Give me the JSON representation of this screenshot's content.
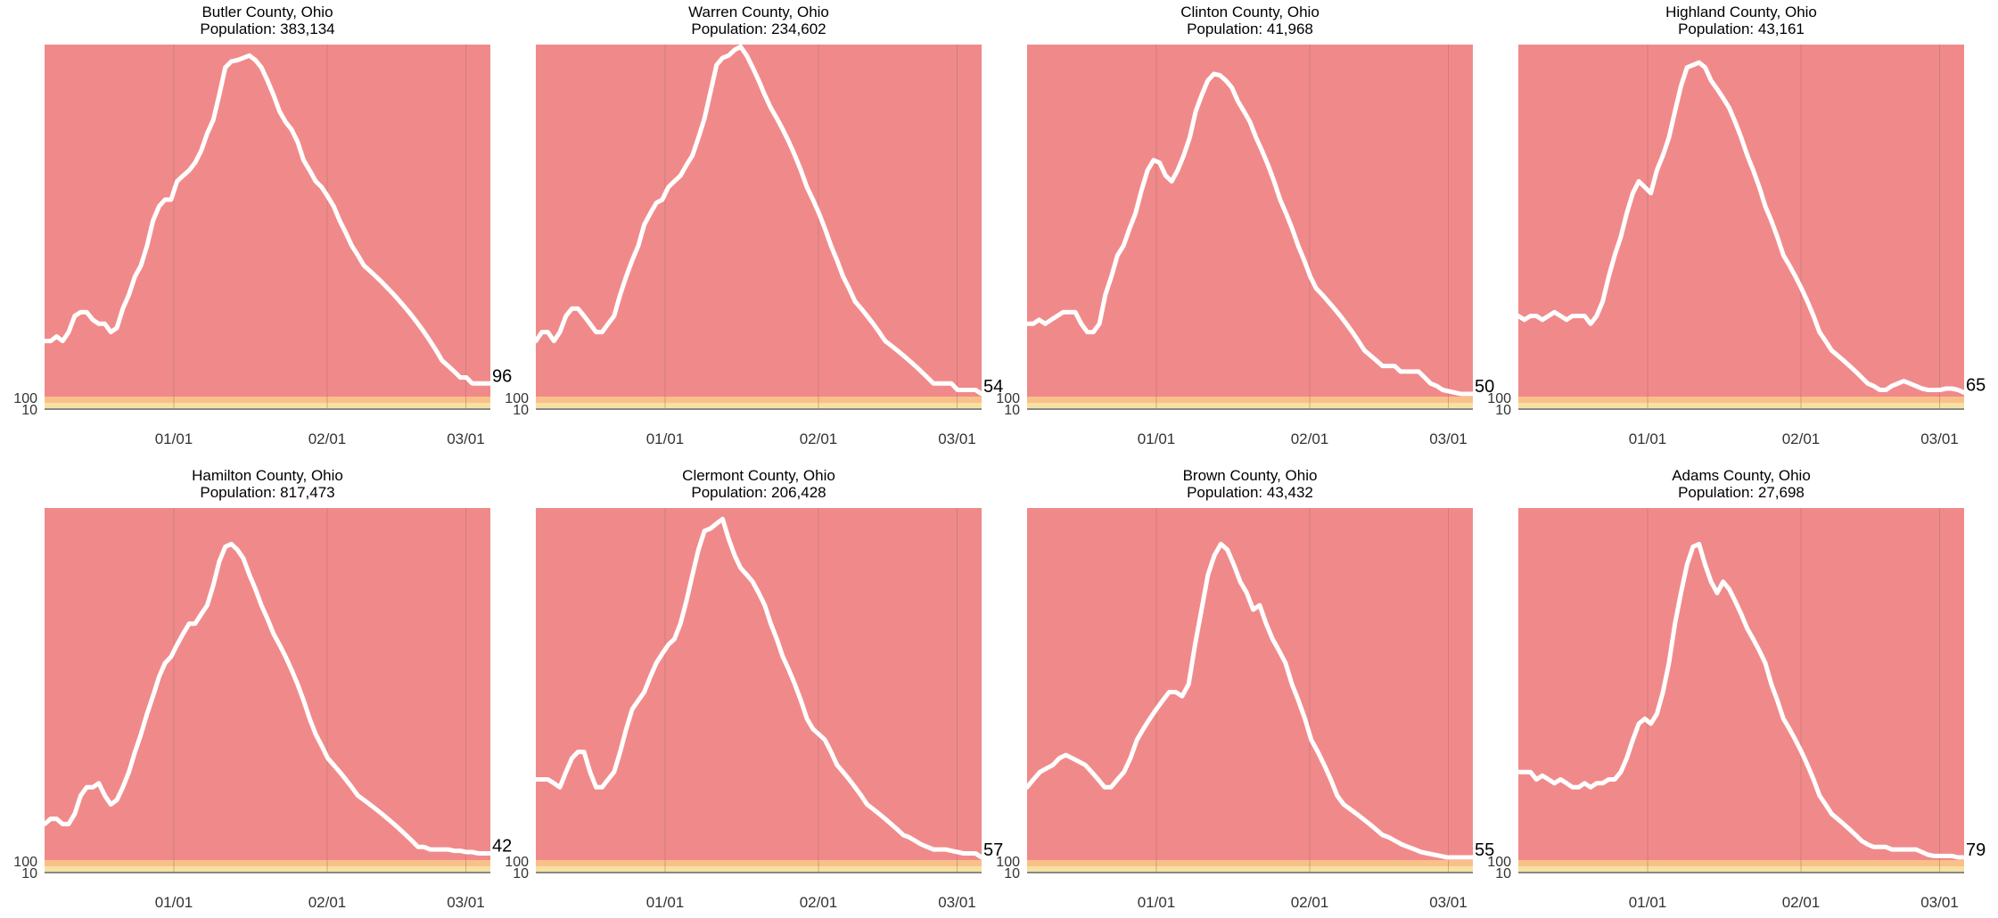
{
  "chart_data": [
    {
      "type": "line",
      "county": "Butler County, Ohio",
      "population": "Population: 383,134",
      "end_label": "96",
      "x_ticks": [
        "01/01",
        "02/01",
        "03/01"
      ],
      "y_ticks": [
        "100",
        "10"
      ],
      "values": [
        15,
        15,
        15.5,
        15,
        16,
        18,
        18.5,
        18.5,
        17.5,
        17,
        17,
        16,
        16.5,
        19,
        21,
        24,
        26,
        30,
        36,
        40,
        42,
        42,
        48,
        50,
        52,
        55,
        60,
        68,
        75,
        90,
        110,
        115,
        116,
        118,
        120,
        116,
        110,
        100,
        90,
        80,
        74,
        70,
        64,
        56,
        52,
        48,
        46,
        43,
        40,
        36,
        33,
        30,
        28,
        26,
        25,
        24,
        23,
        22,
        21,
        20,
        19,
        18,
        17,
        16,
        15,
        14,
        13,
        12.5,
        12,
        11.5,
        11.5,
        11,
        11,
        11,
        11
      ]
    },
    {
      "type": "line",
      "county": "Warren County, Ohio",
      "population": "Population: 234,602",
      "end_label": "54",
      "x_ticks": [
        "01/01",
        "02/01",
        "03/01"
      ],
      "y_ticks": [
        "100",
        "10"
      ],
      "values": [
        15,
        16,
        16,
        15,
        16,
        18,
        19,
        19,
        18,
        17,
        16,
        16,
        17,
        18,
        21,
        24,
        27,
        30,
        35,
        38,
        41,
        42,
        46,
        48,
        50,
        54,
        58,
        66,
        76,
        92,
        112,
        118,
        120,
        125,
        128,
        120,
        110,
        100,
        90,
        82,
        76,
        70,
        64,
        58,
        52,
        46,
        42,
        38,
        34,
        30,
        27,
        24,
        22,
        20,
        19,
        18,
        17,
        16,
        15,
        14.5,
        14,
        13.5,
        13,
        12.5,
        12,
        11.5,
        11,
        11,
        11,
        11,
        10.5,
        10.5,
        10.5,
        10.5,
        10.2
      ]
    },
    {
      "type": "line",
      "county": "Clinton County, Ohio",
      "population": "Population: 41,968",
      "end_label": "50",
      "x_ticks": [
        "01/01",
        "02/01",
        "03/01"
      ],
      "y_ticks": [
        "100",
        "10"
      ],
      "values": [
        17,
        17,
        17.5,
        17,
        17.5,
        18,
        18.5,
        18.5,
        18.5,
        17,
        16,
        16,
        17,
        21,
        24,
        28,
        30,
        34,
        38,
        45,
        52,
        56,
        55,
        50,
        48,
        52,
        58,
        66,
        80,
        90,
        100,
        105,
        104,
        100,
        95,
        86,
        80,
        74,
        66,
        60,
        54,
        48,
        42,
        38,
        34,
        30,
        27,
        24,
        22,
        21,
        20,
        19,
        18,
        17,
        16,
        15,
        14,
        13.5,
        13,
        12.5,
        12.5,
        12.5,
        12,
        12,
        12,
        12,
        11.5,
        11,
        10.8,
        10.5,
        10.4,
        10.3,
        10.2,
        10.2,
        10.2
      ]
    },
    {
      "type": "line",
      "county": "Highland County, Ohio",
      "population": "Population: 43,161",
      "end_label": "65",
      "x_ticks": [
        "01/01",
        "02/01",
        "03/01"
      ],
      "y_ticks": [
        "100",
        "10"
      ],
      "values": [
        18,
        17.5,
        18,
        18,
        17.5,
        18,
        18.5,
        18,
        17.5,
        18,
        18,
        18,
        17,
        18,
        20,
        24,
        28,
        32,
        38,
        44,
        48,
        46,
        44,
        52,
        58,
        66,
        80,
        96,
        110,
        112,
        114,
        110,
        100,
        94,
        88,
        82,
        74,
        66,
        58,
        52,
        46,
        40,
        36,
        32,
        28,
        26,
        24,
        22,
        20,
        18,
        16,
        15,
        14,
        13.5,
        13,
        12.5,
        12,
        11.5,
        11,
        10.8,
        10.5,
        10.5,
        10.8,
        11,
        11.2,
        11,
        10.8,
        10.6,
        10.5,
        10.5,
        10.5,
        10.6,
        10.6,
        10.5,
        10.3
      ]
    },
    {
      "type": "line",
      "county": "Hamilton County, Ohio",
      "population": "Population: 817,473",
      "end_label": "42",
      "x_ticks": [
        "01/01",
        "02/01",
        "03/01"
      ],
      "y_ticks": [
        "100",
        "10"
      ],
      "values": [
        13,
        13.5,
        13.5,
        13,
        13,
        14,
        16,
        17,
        17,
        17.5,
        16,
        15,
        15.5,
        17,
        19,
        22,
        25,
        29,
        33,
        38,
        42,
        44,
        48,
        52,
        56,
        56,
        60,
        64,
        74,
        88,
        98,
        100,
        96,
        90,
        80,
        72,
        64,
        58,
        52,
        48,
        44,
        40,
        36,
        32,
        28,
        25,
        23,
        21,
        20,
        19,
        18,
        17,
        16,
        15.5,
        15,
        14.5,
        14,
        13.5,
        13,
        12.5,
        12,
        11.5,
        11,
        11,
        10.8,
        10.8,
        10.8,
        10.8,
        10.7,
        10.7,
        10.6,
        10.6,
        10.5,
        10.5,
        10.5
      ]
    },
    {
      "type": "line",
      "county": "Clermont County, Ohio",
      "population": "Population: 206,428",
      "end_label": "57",
      "x_ticks": [
        "01/01",
        "02/01",
        "03/01"
      ],
      "y_ticks": [
        "100",
        "10"
      ],
      "values": [
        18,
        18,
        18,
        17.5,
        17,
        19,
        21,
        22,
        22,
        19,
        17,
        17,
        18,
        19,
        22,
        26,
        30,
        32,
        34,
        38,
        42,
        45,
        48,
        50,
        56,
        66,
        80,
        96,
        110,
        112,
        116,
        120,
        104,
        92,
        84,
        80,
        76,
        70,
        64,
        56,
        50,
        44,
        40,
        36,
        32,
        28,
        26,
        25,
        24,
        22,
        20,
        19,
        18,
        17,
        16,
        15,
        14.5,
        14,
        13.5,
        13,
        12.5,
        12,
        11.8,
        11.5,
        11.2,
        11,
        10.8,
        10.8,
        10.8,
        10.7,
        10.6,
        10.5,
        10.5,
        10.5,
        10.2
      ]
    },
    {
      "type": "line",
      "county": "Brown County, Ohio",
      "population": "Population: 43,432",
      "end_label": "55",
      "x_ticks": [
        "01/01",
        "02/01",
        "03/01"
      ],
      "y_ticks": [
        "100",
        "10"
      ],
      "values": [
        17,
        18,
        19,
        19.5,
        20,
        21,
        21.5,
        21,
        20.5,
        20,
        19,
        18,
        17,
        17,
        18,
        19,
        21,
        24,
        26,
        28,
        30,
        32,
        34,
        34,
        33,
        36,
        48,
        62,
        80,
        92,
        100,
        96,
        86,
        76,
        70,
        62,
        64,
        56,
        50,
        46,
        42,
        36,
        32,
        28,
        24,
        22,
        20,
        18,
        16,
        15,
        14.5,
        14,
        13.5,
        13,
        12.5,
        12,
        11.8,
        11.5,
        11.2,
        11,
        10.8,
        10.6,
        10.5,
        10.4,
        10.3,
        10.2,
        10.2,
        10.2,
        10.2,
        10.2
      ]
    },
    {
      "type": "line",
      "county": "Adams County, Ohio",
      "population": "Population: 27,698",
      "end_label": "79",
      "x_ticks": [
        "01/01",
        "02/01",
        "03/01"
      ],
      "y_ticks": [
        "100",
        "10"
      ],
      "values": [
        19,
        19,
        19,
        18,
        18.5,
        18,
        17.5,
        18,
        17.5,
        17,
        17,
        17.5,
        17,
        17.5,
        17.5,
        18,
        18,
        19,
        21,
        24,
        27,
        28,
        27,
        29,
        34,
        42,
        56,
        70,
        86,
        98,
        100,
        86,
        76,
        70,
        76,
        72,
        66,
        60,
        54,
        50,
        46,
        42,
        36,
        32,
        28,
        26,
        24,
        22,
        20,
        18,
        16,
        15,
        14,
        13.5,
        13,
        12.5,
        12,
        11.5,
        11.2,
        11,
        11,
        11,
        10.8,
        10.8,
        10.8,
        10.8,
        10.8,
        10.6,
        10.4,
        10.3,
        10.3,
        10.3,
        10.3,
        10.2,
        10.2
      ]
    }
  ],
  "colors": {
    "background": "#f08a8a",
    "line": "#ffffff",
    "band_yellow": "#f7e1a2",
    "band_orange": "#fac08a",
    "axis": "#888888"
  }
}
